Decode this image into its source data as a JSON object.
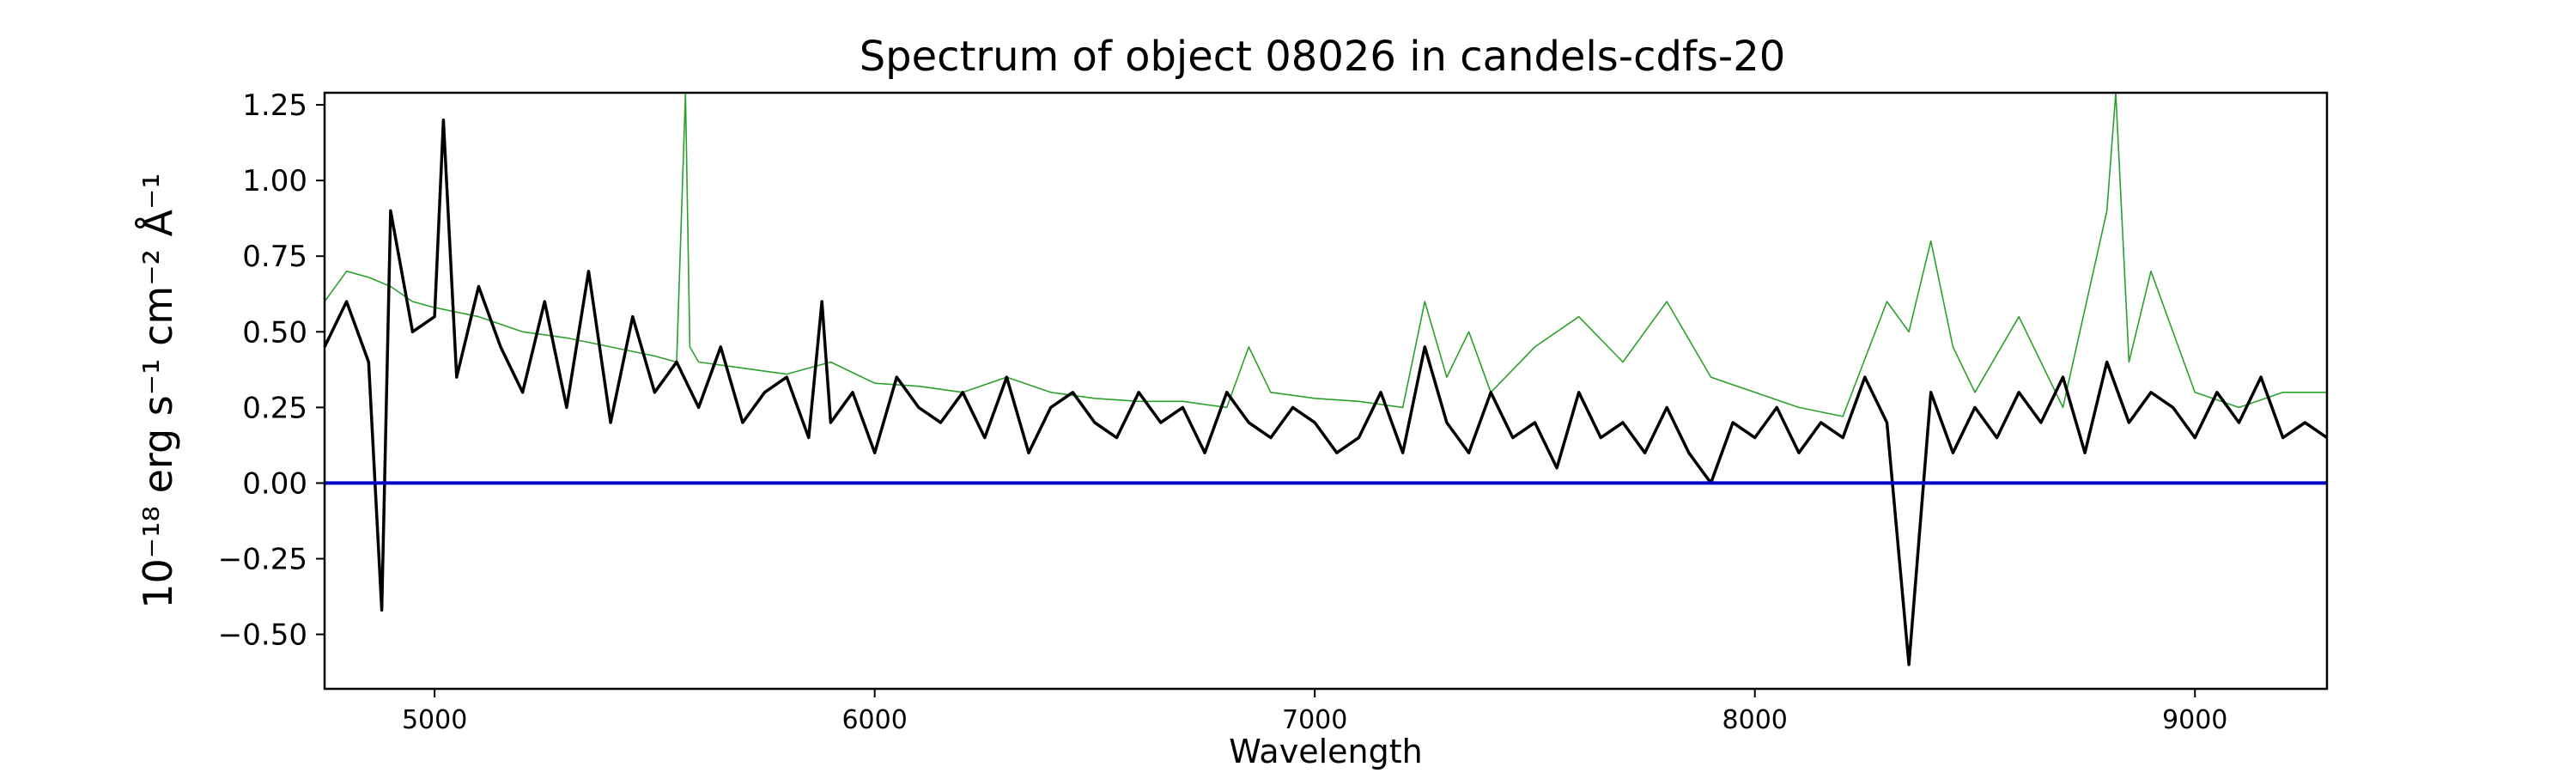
{
  "chart_data": {
    "type": "line",
    "title": "Spectrum of object 08026 in candels-cdfs-20",
    "xlabel": "Wavelength",
    "ylabel": "10⁻¹⁸ erg s⁻¹ cm⁻² Å⁻¹",
    "xlim": [
      4750,
      9300
    ],
    "ylim": [
      -0.68,
      1.29
    ],
    "xticks": [
      5000,
      6000,
      7000,
      8000,
      9000
    ],
    "yticks": [
      -0.5,
      -0.25,
      0.0,
      0.25,
      0.5,
      0.75,
      1.0,
      1.25
    ],
    "ytick_labels": [
      "−0.50",
      "−0.25",
      "0.00",
      "0.25",
      "0.50",
      "0.75",
      "1.00",
      "1.25"
    ],
    "grid": false,
    "series": [
      {
        "role": "flux",
        "color": "#000000",
        "x": [
          4750,
          4800,
          4850,
          4880,
          4900,
          4950,
          5000,
          5020,
          5050,
          5100,
          5150,
          5200,
          5250,
          5300,
          5350,
          5400,
          5450,
          5500,
          5550,
          5600,
          5650,
          5700,
          5750,
          5800,
          5850,
          5880,
          5900,
          5950,
          6000,
          6050,
          6100,
          6150,
          6200,
          6250,
          6300,
          6350,
          6400,
          6450,
          6500,
          6550,
          6600,
          6650,
          6700,
          6750,
          6800,
          6850,
          6900,
          6950,
          7000,
          7050,
          7100,
          7150,
          7200,
          7250,
          7300,
          7350,
          7400,
          7450,
          7500,
          7550,
          7600,
          7650,
          7700,
          7750,
          7800,
          7850,
          7900,
          7950,
          8000,
          8050,
          8100,
          8150,
          8200,
          8250,
          8300,
          8350,
          8400,
          8450,
          8500,
          8550,
          8600,
          8650,
          8700,
          8750,
          8800,
          8850,
          8900,
          8950,
          9000,
          9050,
          9100,
          9150,
          9200,
          9250,
          9300
        ],
        "y": [
          0.45,
          0.6,
          0.4,
          -0.42,
          0.9,
          0.5,
          0.55,
          1.2,
          0.35,
          0.65,
          0.45,
          0.3,
          0.6,
          0.25,
          0.7,
          0.2,
          0.55,
          0.3,
          0.4,
          0.25,
          0.45,
          0.2,
          0.3,
          0.35,
          0.15,
          0.6,
          0.2,
          0.3,
          0.1,
          0.35,
          0.25,
          0.2,
          0.3,
          0.15,
          0.35,
          0.1,
          0.25,
          0.3,
          0.2,
          0.15,
          0.3,
          0.2,
          0.25,
          0.1,
          0.3,
          0.2,
          0.15,
          0.25,
          0.2,
          0.1,
          0.15,
          0.3,
          0.1,
          0.45,
          0.2,
          0.1,
          0.3,
          0.15,
          0.2,
          0.05,
          0.3,
          0.15,
          0.2,
          0.1,
          0.25,
          0.1,
          0.0,
          0.2,
          0.15,
          0.25,
          0.1,
          0.2,
          0.15,
          0.35,
          0.2,
          -0.6,
          0.3,
          0.1,
          0.25,
          0.15,
          0.3,
          0.2,
          0.35,
          0.1,
          0.4,
          0.2,
          0.3,
          0.25,
          0.15,
          0.3,
          0.2,
          0.35,
          0.15,
          0.2,
          0.15
        ]
      },
      {
        "role": "error",
        "color": "#2ca02c",
        "x": [
          4750,
          4800,
          4850,
          4900,
          4950,
          5000,
          5100,
          5200,
          5300,
          5400,
          5500,
          5550,
          5570,
          5580,
          5600,
          5700,
          5800,
          5900,
          6000,
          6100,
          6200,
          6300,
          6400,
          6500,
          6600,
          6700,
          6800,
          6850,
          6900,
          7000,
          7100,
          7200,
          7250,
          7300,
          7350,
          7400,
          7500,
          7600,
          7700,
          7800,
          7900,
          8000,
          8100,
          8200,
          8300,
          8350,
          8400,
          8450,
          8500,
          8600,
          8700,
          8800,
          8820,
          8850,
          8900,
          9000,
          9100,
          9200,
          9300
        ],
        "y": [
          0.6,
          0.7,
          0.68,
          0.65,
          0.6,
          0.58,
          0.55,
          0.5,
          0.48,
          0.45,
          0.42,
          0.4,
          1.29,
          0.45,
          0.4,
          0.38,
          0.36,
          0.4,
          0.33,
          0.32,
          0.3,
          0.35,
          0.3,
          0.28,
          0.27,
          0.27,
          0.25,
          0.45,
          0.3,
          0.28,
          0.27,
          0.25,
          0.6,
          0.35,
          0.5,
          0.3,
          0.45,
          0.55,
          0.4,
          0.6,
          0.35,
          0.3,
          0.25,
          0.22,
          0.6,
          0.5,
          0.8,
          0.45,
          0.3,
          0.55,
          0.25,
          0.9,
          1.29,
          0.4,
          0.7,
          0.3,
          0.25,
          0.3,
          0.3
        ]
      },
      {
        "role": "zero",
        "color": "#0000cc",
        "x": [
          4750,
          9300
        ],
        "y": [
          0,
          0
        ]
      }
    ]
  }
}
